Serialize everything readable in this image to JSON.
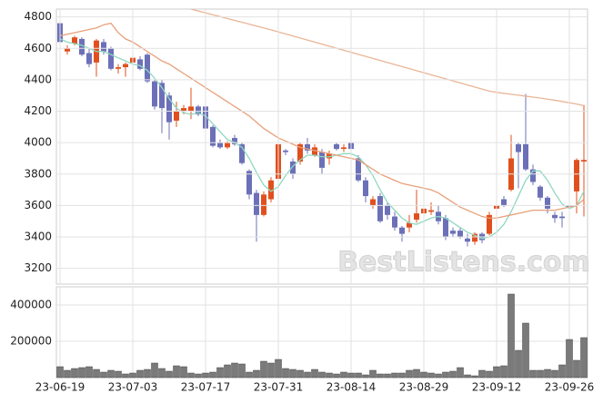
{
  "chart_data": {
    "type": "candlestick",
    "watermark": "BestListens.com",
    "categories": [
      "23-06-19",
      null,
      null,
      null,
      null,
      null,
      null,
      null,
      null,
      null,
      "23-07-03",
      null,
      null,
      null,
      null,
      null,
      null,
      null,
      null,
      null,
      "23-07-17",
      null,
      null,
      null,
      null,
      null,
      null,
      null,
      null,
      null,
      "23-07-31",
      null,
      null,
      null,
      null,
      null,
      null,
      null,
      null,
      null,
      "23-08-14",
      null,
      null,
      null,
      null,
      null,
      null,
      null,
      null,
      null,
      "23-08-29",
      null,
      null,
      null,
      null,
      null,
      null,
      null,
      null,
      null,
      "23-09-12",
      null,
      null,
      null,
      null,
      null,
      null,
      null,
      null,
      null,
      "23-09-26",
      null,
      null
    ],
    "open": [
      4760,
      4580,
      4630,
      4660,
      4570,
      4510,
      4640,
      4600,
      4470,
      4480,
      4510,
      4530,
      4560,
      4390,
      4380,
      4300,
      4140,
      4200,
      4200,
      4230,
      4230,
      4100,
      4000,
      3970,
      4030,
      3990,
      3820,
      3680,
      3540,
      3640,
      3770,
      3950,
      3880,
      3880,
      3990,
      3920,
      3940,
      3900,
      3990,
      3960,
      4000,
      3900,
      3760,
      3600,
      3660,
      3600,
      3530,
      3460,
      3460,
      3510,
      3550,
      3560,
      3560,
      3520,
      3440,
      3440,
      3390,
      3370,
      3420,
      3420,
      3580,
      3640,
      3700,
      3990,
      3990,
      3830,
      3720,
      3650,
      3540,
      3530,
      3600,
      3690,
      3880
    ],
    "high": [
      4770,
      4620,
      4680,
      4670,
      4600,
      4660,
      4660,
      4610,
      4500,
      4510,
      4560,
      4550,
      4570,
      4400,
      4400,
      4320,
      4260,
      4240,
      4350,
      4240,
      4240,
      4110,
      4020,
      4010,
      4050,
      4000,
      3830,
      3700,
      3690,
      3780,
      4010,
      3960,
      3900,
      4000,
      4030,
      3990,
      3960,
      3950,
      4000,
      3990,
      4010,
      3920,
      3780,
      3660,
      3680,
      3620,
      3560,
      3470,
      3540,
      3700,
      3600,
      3620,
      3600,
      3540,
      3460,
      3460,
      3420,
      3430,
      3430,
      3560,
      3640,
      3660,
      4050,
      4000,
      4310,
      3860,
      3730,
      3660,
      3560,
      3560,
      3890,
      3900,
      4240
    ],
    "low": [
      4600,
      4560,
      4620,
      4550,
      4480,
      4420,
      4560,
      4460,
      4440,
      4420,
      4490,
      4460,
      4380,
      4210,
      4060,
      4020,
      4100,
      4180,
      4150,
      4170,
      4020,
      3970,
      3960,
      3960,
      3980,
      3860,
      3640,
      3370,
      3530,
      3620,
      3770,
      3920,
      3770,
      3860,
      3930,
      3910,
      3800,
      3860,
      3950,
      3940,
      3950,
      3750,
      3620,
      3580,
      3490,
      3510,
      3440,
      3370,
      3430,
      3490,
      3530,
      3540,
      3480,
      3380,
      3400,
      3390,
      3340,
      3350,
      3360,
      3410,
      3570,
      3590,
      3690,
      3710,
      3820,
      3730,
      3630,
      3550,
      3490,
      3460,
      3470,
      3550,
      3530
    ],
    "close": [
      4640,
      4600,
      4670,
      4560,
      4500,
      4650,
      4580,
      4470,
      4480,
      4500,
      4540,
      4470,
      4390,
      4230,
      4220,
      4130,
      4200,
      4220,
      4230,
      4180,
      4090,
      3980,
      3970,
      4000,
      3990,
      3870,
      3670,
      3540,
      3670,
      3760,
      3990,
      3940,
      3800,
      3990,
      3950,
      3970,
      3840,
      3930,
      3960,
      3970,
      3960,
      3760,
      3660,
      3640,
      3500,
      3540,
      3460,
      3420,
      3490,
      3550,
      3580,
      3570,
      3500,
      3400,
      3420,
      3400,
      3370,
      3420,
      3380,
      3540,
      3600,
      3600,
      3900,
      3940,
      3830,
      3750,
      3650,
      3580,
      3520,
      3520,
      3590,
      3890,
      3890
    ],
    "up_color": "#e0501e",
    "down_color": "#6c70b8",
    "lines": [
      {
        "color": "#8fd8bf",
        "values": [
          4660,
          4640,
          4630,
          4620,
          4600,
          4580,
          4580,
          4560,
          4540,
          4520,
          4500,
          4490,
          4460,
          4410,
          4350,
          4280,
          4220,
          4190,
          4180,
          4190,
          4170,
          4120,
          4070,
          4020,
          4000,
          3970,
          3900,
          3810,
          3730,
          3690,
          3720,
          3790,
          3850,
          3890,
          3920,
          3920,
          3910,
          3910,
          3920,
          3930,
          3930,
          3910,
          3860,
          3790,
          3700,
          3620,
          3570,
          3520,
          3490,
          3480,
          3500,
          3520,
          3530,
          3520,
          3490,
          3460,
          3430,
          3410,
          3390,
          3400,
          3430,
          3480,
          3560,
          3660,
          3760,
          3820,
          3820,
          3760,
          3680,
          3610,
          3580,
          3600,
          3690
        ]
      },
      {
        "color": "#e8a07a",
        "values": [
          4680,
          4690,
          4700,
          4710,
          4720,
          4730,
          4750,
          4760,
          4700,
          4660,
          4640,
          4610,
          4580,
          4550,
          4520,
          4500,
          4470,
          4440,
          4410,
          4380,
          4350,
          4320,
          4290,
          4260,
          4230,
          4200,
          4170,
          4130,
          4090,
          4060,
          4030,
          4010,
          3990,
          3970,
          3960,
          3950,
          3940,
          3930,
          3920,
          3910,
          3900,
          3890,
          3860,
          3830,
          3800,
          3780,
          3760,
          3740,
          3730,
          3720,
          3710,
          3700,
          3680,
          3650,
          3620,
          3590,
          3570,
          3550,
          3530,
          3520,
          3520,
          3530,
          3540,
          3550,
          3560,
          3570,
          3570,
          3570,
          3570,
          3580,
          3590,
          3600,
          3640
        ]
      },
      {
        "color": "#eab596",
        "values": [
          null,
          null,
          null,
          null,
          null,
          null,
          null,
          null,
          null,
          null,
          null,
          null,
          null,
          null,
          null,
          null,
          null,
          null,
          4850,
          4838,
          4826,
          4814,
          4802,
          4790,
          4778,
          4766,
          4754,
          4742,
          4730,
          4718,
          4705,
          4692,
          4679,
          4666,
          4653,
          4640,
          4627,
          4614,
          4601,
          4588,
          4575,
          4562,
          4549,
          4536,
          4523,
          4510,
          4497,
          4484,
          4471,
          4458,
          4445,
          4432,
          4419,
          4406,
          4393,
          4380,
          4367,
          4354,
          4341,
          4328,
          4320,
          4314,
          4308,
          4302,
          4296,
          4290,
          4284,
          4277,
          4270,
          4262,
          4254,
          4246,
          4235
        ]
      }
    ],
    "ylim": [
      3100,
      4850
    ],
    "yticks": [
      3200,
      3400,
      3600,
      3800,
      4000,
      4200,
      4400,
      4600,
      4800
    ],
    "grid": true,
    "volume": {
      "type": "bar",
      "color": "#7a7a7a",
      "values": [
        60000,
        40000,
        50000,
        55000,
        60000,
        45000,
        30000,
        40000,
        35000,
        20000,
        25000,
        40000,
        45000,
        80000,
        50000,
        35000,
        65000,
        60000,
        25000,
        20000,
        25000,
        30000,
        55000,
        70000,
        80000,
        75000,
        30000,
        40000,
        90000,
        80000,
        100000,
        50000,
        45000,
        40000,
        30000,
        45000,
        30000,
        25000,
        20000,
        30000,
        25000,
        25000,
        15000,
        40000,
        20000,
        20000,
        25000,
        25000,
        40000,
        45000,
        30000,
        25000,
        20000,
        30000,
        35000,
        55000,
        15000,
        10000,
        40000,
        35000,
        60000,
        65000,
        460000,
        150000,
        300000,
        40000,
        40000,
        45000,
        40000,
        70000,
        210000,
        95000,
        220000
      ],
      "ylim": [
        0,
        500000
      ],
      "yticks": [
        200000,
        400000
      ]
    }
  }
}
